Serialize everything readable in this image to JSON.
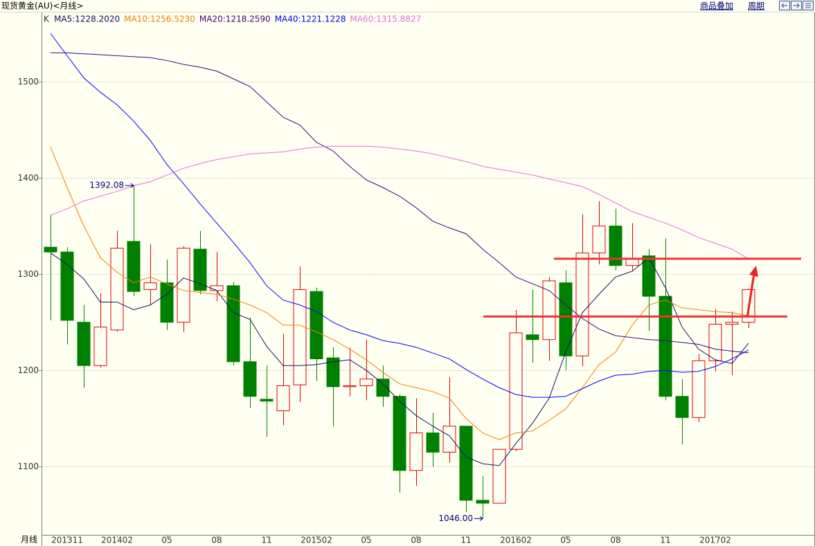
{
  "chart_data": {
    "type": "candlestick",
    "title": "现货黄金(AU)<月线>",
    "toolbar": [
      "商品叠加",
      "周期"
    ],
    "indicator": "K",
    "x_axis_label": "月线",
    "categories": [
      null,
      "201311",
      null,
      null,
      "201402",
      null,
      null,
      "05",
      null,
      null,
      "08",
      null,
      null,
      "11",
      null,
      null,
      "201502",
      null,
      null,
      "05",
      null,
      null,
      "08",
      null,
      null,
      "11",
      null,
      null,
      "201602",
      null,
      null,
      "05",
      null,
      null,
      "08",
      null,
      null,
      "11",
      null,
      null,
      "201702",
      null,
      null
    ],
    "open": [
      1328,
      1323,
      1250,
      1205,
      1242,
      1334,
      1284,
      1291,
      1250,
      1326,
      1283,
      1288,
      1209,
      1170,
      1158,
      1185,
      1282,
      1213,
      1183,
      1184,
      1191,
      1173,
      1096,
      1135,
      1115,
      1142,
      1065,
      1062,
      1118,
      1237,
      1232,
      1291,
      1215,
      1322,
      1350,
      1309,
      1319,
      1277,
      1173,
      1151,
      1210,
      1248,
      1250
    ],
    "high": [
      1362,
      1328,
      1268,
      1280,
      1345,
      1392.08,
      1331,
      1315,
      1329,
      1345,
      1323,
      1292,
      1255,
      1205,
      1238,
      1308,
      1286,
      1224,
      1224,
      1232,
      1205,
      1175,
      1171,
      1156,
      1193,
      1142,
      1090,
      1118,
      1263,
      1284,
      1297,
      1304,
      1362,
      1376,
      1368,
      1353,
      1326,
      1337,
      1191,
      1217,
      1264,
      1261,
      1285
    ],
    "low": [
      1252,
      1227,
      1182,
      1203,
      1240,
      1277,
      1268,
      1242,
      1240,
      1279,
      1272,
      1205,
      1161,
      1131,
      1143,
      1167,
      1189,
      1142,
      1173,
      1169,
      1162,
      1073,
      1080,
      1100,
      1104,
      1053,
      1046,
      1062,
      1116,
      1208,
      1210,
      1200,
      1204,
      1310,
      1304,
      1304,
      1241,
      1169,
      1123,
      1146,
      1199,
      1195,
      1244
    ],
    "close": [
      1323,
      1252,
      1205,
      1245,
      1327,
      1282,
      1291,
      1250,
      1327,
      1283,
      1288,
      1209,
      1173,
      1168,
      1184,
      1284,
      1212,
      1183,
      1184,
      1191,
      1173,
      1096,
      1135,
      1115,
      1142,
      1065,
      1062,
      1118,
      1239,
      1232,
      1293,
      1215,
      1322,
      1350,
      1309,
      1316,
      1277,
      1173,
      1151,
      1210,
      1248,
      1250,
      1284
    ],
    "up_color": "#e00000",
    "down_color": "#008000",
    "series": [
      {
        "name": "MA5:1228.2020",
        "color": "#101060",
        "values": [
          1322,
          1310,
          1295,
          1271,
          1271,
          1263,
          1268,
          1279,
          1296,
          1290,
          1283,
          1260,
          1253,
          1225,
          1205,
          1205,
          1206,
          1209,
          1211,
          1200,
          1186,
          1168,
          1153,
          1142,
          1132,
          1110,
          1103,
          1101,
          1124,
          1145,
          1171,
          1219,
          1260,
          1279,
          1297,
          1303,
          1317,
          1286,
          1245,
          1222,
          1211,
          1207,
          1228.202
        ]
      },
      {
        "name": "MA10:1256.5230",
        "color": "#f08000",
        "values": [
          1432,
          1390,
          1350,
          1317,
          1302,
          1291,
          1297,
          1290,
          1283,
          1281,
          1279,
          1274,
          1268,
          1260,
          1247,
          1247,
          1240,
          1232,
          1222,
          1211,
          1198,
          1186,
          1182,
          1178,
          1171,
          1150,
          1135,
          1128,
          1135,
          1137,
          1148,
          1160,
          1182,
          1206,
          1219,
          1247,
          1268,
          1273,
          1265,
          1263,
          1261,
          1260,
          1256.523
        ]
      },
      {
        "name": "MA20:1218.2590",
        "color": "#400080",
        "values": [
          1530,
          1530,
          1529,
          1528,
          1527,
          1526,
          1525,
          1522,
          1518,
          1515,
          1511,
          1503,
          1495,
          1479,
          1463,
          1455,
          1437,
          1428,
          1412,
          1398,
          1390,
          1381,
          1369,
          1355,
          1348,
          1342,
          1326,
          1312,
          1297,
          1290,
          1283,
          1268,
          1254,
          1243,
          1236,
          1234,
          1232,
          1231,
          1229,
          1227,
          1222,
          1220,
          1218.259
        ]
      },
      {
        "name": "MA40:1221.1228",
        "color": "#0000ff",
        "values": [
          1550,
          1527,
          1504,
          1489,
          1476,
          1459,
          1439,
          1414,
          1394,
          1373,
          1353,
          1333,
          1312,
          1288,
          1273,
          1268,
          1261,
          1250,
          1242,
          1237,
          1231,
          1228,
          1224,
          1218,
          1212,
          1201,
          1191,
          1182,
          1175,
          1172,
          1172,
          1173,
          1181,
          1189,
          1195,
          1196,
          1199,
          1200,
          1198,
          1199,
          1204,
          1212,
          1221.1228
        ]
      },
      {
        "name": "MA60:1315.8827",
        "color": "#e070e0",
        "values": [
          1361,
          1368,
          1376,
          1381,
          1386,
          1392,
          1396,
          1403,
          1410,
          1415,
          1419,
          1422,
          1425,
          1426,
          1427,
          1430,
          1432,
          1433,
          1433,
          1433,
          1432,
          1430,
          1428,
          1425,
          1421,
          1417,
          1412,
          1409,
          1406,
          1403,
          1399,
          1395,
          1391,
          1383,
          1374,
          1365,
          1359,
          1353,
          1346,
          1338,
          1332,
          1326,
          1315.8827
        ]
      }
    ],
    "annotations": [
      {
        "value": 1392.08,
        "label": "1392.08"
      },
      {
        "value": 1046,
        "label": "1046.00"
      }
    ],
    "hlines": [
      1316,
      1256
    ],
    "hline_color": "#ee3333",
    "ylim": [
      1029,
      1570.5
    ],
    "yticks": [
      1100,
      1200,
      1300,
      1400,
      1500
    ],
    "grid": true
  }
}
